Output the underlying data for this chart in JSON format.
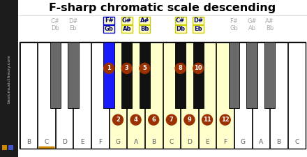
{
  "title": "F-sharp chromatic scale descending",
  "background": "#ffffff",
  "sidebar_text": "basicmusictheory.com",
  "wk_labels": [
    "B",
    "C",
    "D",
    "E",
    "F",
    "G",
    "A",
    "B",
    "C",
    "D",
    "E",
    "F",
    "G",
    "A",
    "B",
    "C"
  ],
  "n_white": 16,
  "black_key_after": [
    1,
    2,
    4,
    5,
    6,
    8,
    9,
    11,
    12,
    13
  ],
  "highlighted_white": [
    5,
    6,
    7,
    8,
    9,
    10,
    11
  ],
  "highlighted_black_after": [
    4,
    5,
    6,
    8,
    9
  ],
  "fsharp_black_after": 4,
  "numbered_black": {
    "4": 1,
    "5": 3,
    "6": 5,
    "8": 8,
    "9": 10
  },
  "numbered_white": {
    "5": 2,
    "6": 4,
    "7": 6,
    "8": 7,
    "9": 9,
    "10": 11,
    "11": 12
  },
  "gray_black_labels": {
    "1": [
      "C#",
      "Db"
    ],
    "2": [
      "D#",
      "Eb"
    ],
    "11": [
      "F#",
      "Gb"
    ],
    "12": [
      "G#",
      "Ab"
    ],
    "13": [
      "A#",
      "Bb"
    ]
  },
  "highlighted_black_labels": {
    "4": [
      "F#",
      "Gb"
    ],
    "5": [
      "G#",
      "Ab"
    ],
    "6": [
      "A#",
      "Bb"
    ],
    "8": [
      "C#",
      "Db"
    ],
    "9": [
      "D#",
      "Eb"
    ]
  },
  "circle_color": "#9b3000",
  "circle_text_color": "#ffffff",
  "highlight_fill": "#ffffcc",
  "highlight_border": "#cccc00",
  "fsharp_box_border": "#0000cc",
  "fsharp_key_color": "#1a1aff",
  "gray_key_color": "#696969",
  "black_key_color": "#111111",
  "white_key_color": "#ffffff",
  "key_border_color": "#000000",
  "orange_color": "#cc8800",
  "gray_text": "#aaaaaa",
  "sidebar_bg": "#1c1c1c",
  "piano_border_color": "#000000"
}
